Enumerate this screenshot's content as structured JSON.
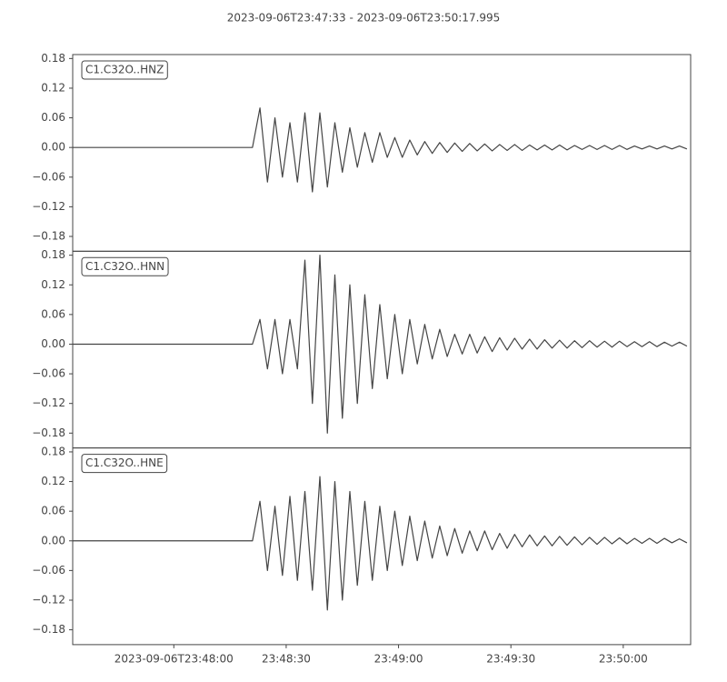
{
  "title": "2023-09-06T23:47:33  -  2023-09-06T23:50:17.995",
  "chart_data": {
    "type": "line",
    "x": [
      0,
      12,
      24,
      36,
      46,
      48,
      50,
      52,
      54,
      56,
      58,
      60,
      62,
      64,
      66,
      68,
      70,
      72,
      74,
      76,
      78,
      80,
      82,
      84,
      86,
      88,
      90,
      92,
      94,
      96,
      98,
      100,
      102,
      104,
      106,
      108,
      110,
      112,
      114,
      116,
      118,
      120,
      122,
      124,
      126,
      128,
      130,
      132,
      134,
      136,
      138,
      140,
      142,
      144,
      146,
      148,
      150,
      152,
      154,
      156,
      158,
      160,
      162,
      164
    ],
    "xlim": [
      0,
      164.995
    ],
    "xticks": [
      {
        "value": 27,
        "label": "2023-09-06T23:48:00"
      },
      {
        "value": 57,
        "label": "23:48:30"
      },
      {
        "value": 87,
        "label": "23:49:00"
      },
      {
        "value": 117,
        "label": "23:49:30"
      },
      {
        "value": 147,
        "label": "23:50:00"
      }
    ],
    "ylim": [
      -0.21,
      0.188
    ],
    "yticks": [
      {
        "value": -0.18,
        "label": "−0.18"
      },
      {
        "value": -0.12,
        "label": "−0.12"
      },
      {
        "value": -0.06,
        "label": "−0.06"
      },
      {
        "value": 0,
        "label": "0.00"
      },
      {
        "value": 0.06,
        "label": "0.06"
      },
      {
        "value": 0.12,
        "label": "0.12"
      },
      {
        "value": 0.18,
        "label": "0.18"
      }
    ],
    "series": [
      {
        "name": "C1.C32O..HNZ",
        "color": "#444444",
        "values": [
          0,
          0,
          0,
          0,
          0,
          0,
          0.08,
          -0.07,
          0.06,
          -0.06,
          0.05,
          -0.07,
          0.07,
          -0.09,
          0.07,
          -0.08,
          0.05,
          -0.05,
          0.04,
          -0.04,
          0.03,
          -0.03,
          0.03,
          -0.02,
          0.02,
          -0.02,
          0.015,
          -0.015,
          0.012,
          -0.012,
          0.01,
          -0.01,
          0.009,
          -0.008,
          0.008,
          -0.007,
          0.007,
          -0.007,
          0.006,
          -0.006,
          0.006,
          -0.006,
          0.005,
          -0.005,
          0.005,
          -0.005,
          0.005,
          -0.005,
          0.004,
          -0.004,
          0.004,
          -0.004,
          0.004,
          -0.004,
          0.004,
          -0.004,
          0.003,
          -0.003,
          0.003,
          -0.003,
          0.003,
          -0.003,
          0.003,
          -0.003
        ]
      },
      {
        "name": "C1.C32O..HNN",
        "color": "#444444",
        "values": [
          0,
          0,
          0,
          0,
          0,
          0,
          0.05,
          -0.05,
          0.05,
          -0.06,
          0.05,
          -0.05,
          0.17,
          -0.12,
          0.18,
          -0.18,
          0.14,
          -0.15,
          0.12,
          -0.12,
          0.1,
          -0.09,
          0.08,
          -0.07,
          0.06,
          -0.06,
          0.05,
          -0.04,
          0.04,
          -0.03,
          0.03,
          -0.025,
          0.02,
          -0.02,
          0.02,
          -0.018,
          0.015,
          -0.015,
          0.013,
          -0.012,
          0.012,
          -0.01,
          0.01,
          -0.01,
          0.009,
          -0.008,
          0.008,
          -0.008,
          0.007,
          -0.007,
          0.007,
          -0.006,
          0.006,
          -0.006,
          0.006,
          -0.005,
          0.005,
          -0.005,
          0.005,
          -0.005,
          0.004,
          -0.004,
          0.004,
          -0.004
        ]
      },
      {
        "name": "C1.C32O..HNE",
        "color": "#444444",
        "values": [
          0,
          0,
          0,
          0,
          0,
          0,
          0.08,
          -0.06,
          0.07,
          -0.07,
          0.09,
          -0.08,
          0.1,
          -0.1,
          0.13,
          -0.14,
          0.12,
          -0.12,
          0.1,
          -0.09,
          0.08,
          -0.08,
          0.07,
          -0.06,
          0.06,
          -0.05,
          0.05,
          -0.04,
          0.04,
          -0.035,
          0.03,
          -0.03,
          0.025,
          -0.025,
          0.02,
          -0.02,
          0.02,
          -0.018,
          0.015,
          -0.015,
          0.013,
          -0.012,
          0.012,
          -0.01,
          0.01,
          -0.01,
          0.009,
          -0.009,
          0.008,
          -0.008,
          0.007,
          -0.007,
          0.007,
          -0.006,
          0.006,
          -0.006,
          0.005,
          -0.005,
          0.005,
          -0.005,
          0.005,
          -0.004,
          0.004,
          -0.004
        ]
      }
    ]
  }
}
